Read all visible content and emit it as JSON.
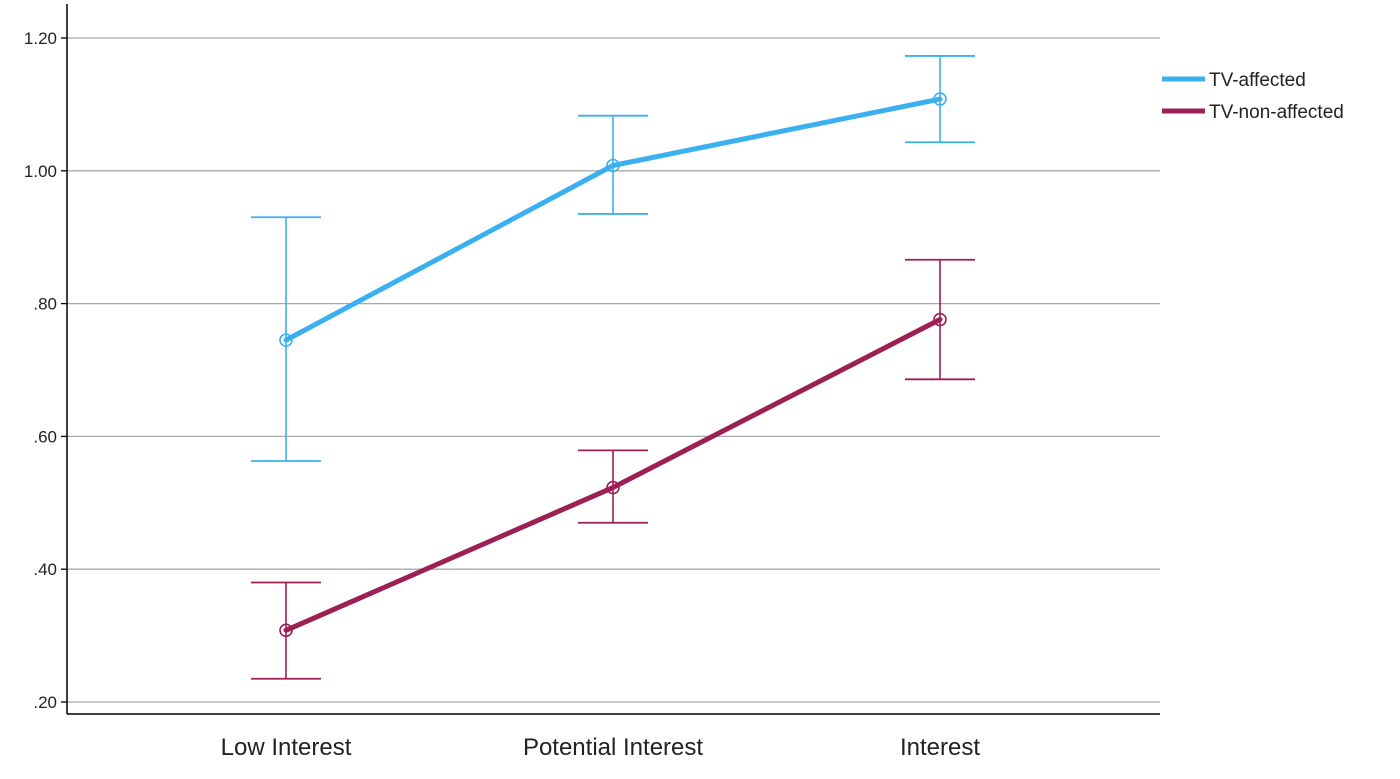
{
  "chart_data": {
    "type": "line",
    "categories": [
      "Low Interest",
      "Potential Interest",
      "Interest"
    ],
    "ylim": [
      0.2,
      1.2
    ],
    "y_ticks": [
      0.2,
      0.4,
      0.6,
      0.8,
      1.0,
      1.2
    ],
    "y_tick_labels": [
      ".20",
      ".40",
      ".60",
      ".80",
      "1.00",
      "1.20"
    ],
    "grid": true,
    "legend_position": "top-right",
    "error_bars": true,
    "series": [
      {
        "name": "TV-affected",
        "color": "#3bb0f0",
        "values": [
          0.745,
          1.008,
          1.108
        ],
        "error_low": [
          0.563,
          0.935,
          1.043
        ],
        "error_high": [
          0.93,
          1.083,
          1.173
        ]
      },
      {
        "name": "TV-non-affected",
        "color": "#9c1f55",
        "values": [
          0.308,
          0.523,
          0.776
        ],
        "error_low": [
          0.235,
          0.47,
          0.686
        ],
        "error_high": [
          0.38,
          0.579,
          0.866
        ]
      }
    ]
  }
}
